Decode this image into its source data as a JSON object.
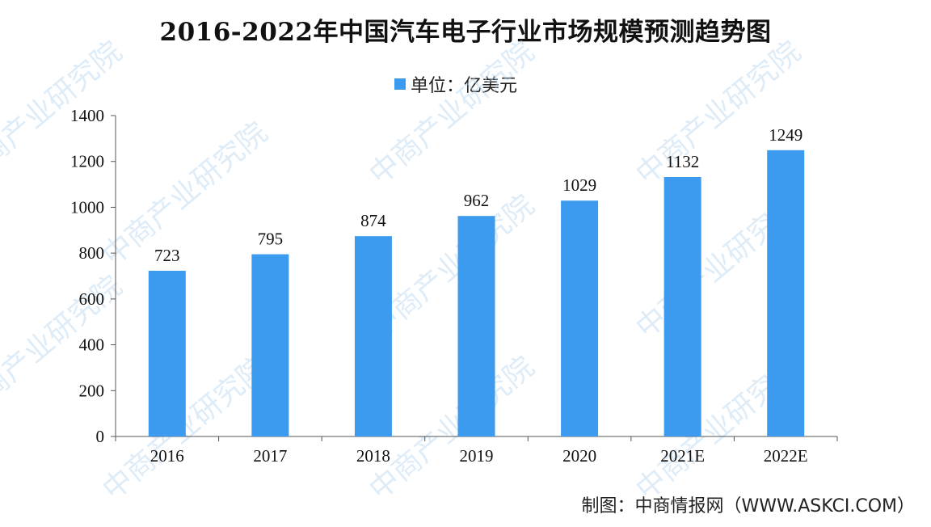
{
  "chart_data": {
    "type": "bar",
    "title": "2016-2022年中国汽车电子行业市场规模预测趋势图",
    "legend": {
      "label": "单位：亿美元",
      "placement": "top-center"
    },
    "categories": [
      "2016",
      "2017",
      "2018",
      "2019",
      "2020",
      "2021E",
      "2022E"
    ],
    "values": [
      723,
      795,
      874,
      962,
      1029,
      1132,
      1249
    ],
    "ylim": [
      0,
      1400
    ],
    "yticks": [
      0,
      200,
      400,
      600,
      800,
      1000,
      1200,
      1400
    ],
    "grid": false,
    "bar_color": "#3C9BEE"
  },
  "source_note": "制图：中商情报网（WWW.ASKCI.COM）",
  "watermark": "中商产业研究院"
}
